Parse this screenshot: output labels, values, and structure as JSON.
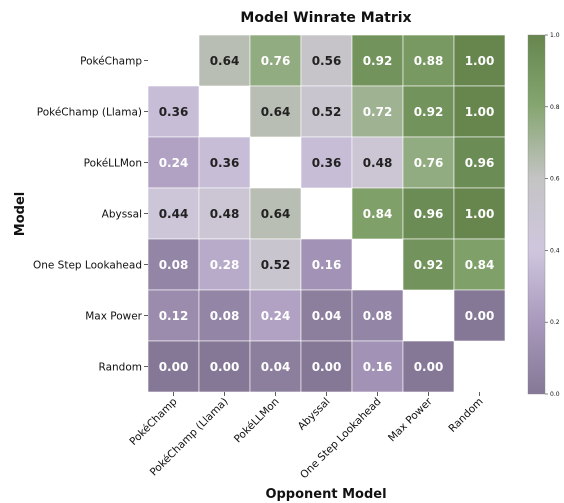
{
  "chart_data": {
    "type": "heatmap",
    "title": "Model Winrate Matrix",
    "xlabel": "Opponent Model",
    "ylabel": "Model",
    "rows": [
      "PokéChamp",
      "PokéChamp (Llama)",
      "PokéLLMon",
      "Abyssal",
      "One Step Lookahead",
      "Max Power",
      "Random"
    ],
    "cols": [
      "PokéChamp",
      "PokéChamp (Llama)",
      "PokéLLMon",
      "Abyssal",
      "One Step Lookahead",
      "Max Power",
      "Random"
    ],
    "values": [
      [
        null,
        0.64,
        0.76,
        0.56,
        0.92,
        0.88,
        1.0
      ],
      [
        0.36,
        null,
        0.64,
        0.52,
        0.72,
        0.92,
        1.0
      ],
      [
        0.24,
        0.36,
        null,
        0.36,
        0.48,
        0.76,
        0.96
      ],
      [
        0.44,
        0.48,
        0.64,
        null,
        0.84,
        0.96,
        1.0
      ],
      [
        0.08,
        0.28,
        0.52,
        0.16,
        null,
        0.92,
        0.84
      ],
      [
        0.12,
        0.08,
        0.24,
        0.04,
        0.08,
        null,
        0.0
      ],
      [
        0.0,
        0.0,
        0.04,
        0.0,
        0.16,
        0.0,
        null
      ]
    ],
    "value_format": "0.00",
    "colorbar": {
      "range": [
        0.0,
        1.0
      ],
      "ticks": [
        "0.0",
        "0.2",
        "0.4",
        "0.6",
        "0.8",
        "1.0"
      ]
    },
    "colormap": [
      "#857896",
      "#a999bd",
      "#cfc6de",
      "#c4c4c4",
      "#86a671",
      "#66864e"
    ]
  }
}
